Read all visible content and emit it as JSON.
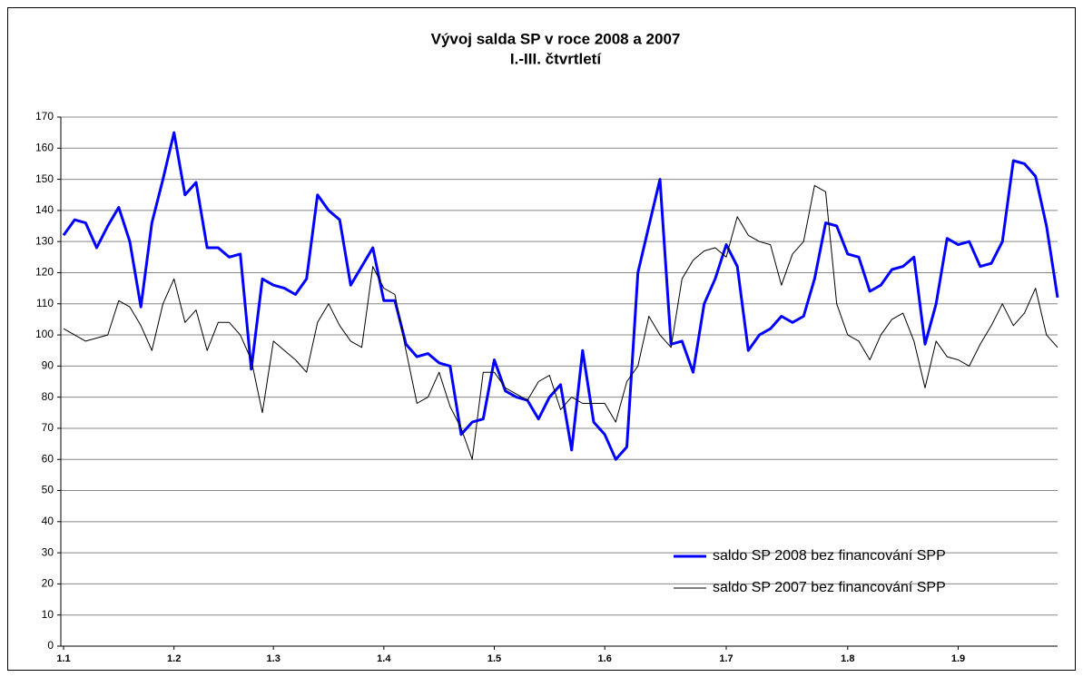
{
  "chart_data": {
    "type": "line",
    "title": "Vývoj salda SP v roce 2008 a 2007",
    "subtitle": "I.-III. čtvrtletí",
    "categories": [
      "1.1",
      null,
      null,
      null,
      null,
      null,
      null,
      null,
      null,
      null,
      "1.2",
      null,
      null,
      null,
      null,
      null,
      null,
      null,
      null,
      "1.3",
      null,
      null,
      null,
      null,
      null,
      null,
      null,
      null,
      null,
      "1.4",
      null,
      null,
      null,
      null,
      null,
      null,
      null,
      null,
      null,
      "1.5",
      null,
      null,
      null,
      null,
      null,
      null,
      null,
      null,
      null,
      "1.6",
      null,
      null,
      null,
      null,
      null,
      null,
      null,
      null,
      null,
      null,
      "1.7",
      null,
      null,
      null,
      null,
      null,
      null,
      null,
      null,
      null,
      null,
      "1.8",
      null,
      null,
      null,
      null,
      null,
      null,
      null,
      null,
      null,
      "1.9",
      null,
      null,
      null,
      null,
      null,
      null,
      null,
      null,
      null
    ],
    "series": [
      {
        "name": "saldo SP 2008 bez financování SPP",
        "color": "#0000ff",
        "width": 3,
        "values": [
          132,
          137,
          136,
          128,
          135,
          141,
          130,
          109,
          136,
          150,
          165,
          145,
          149,
          128,
          128,
          125,
          126,
          89,
          118,
          116,
          115,
          113,
          118,
          145,
          140,
          137,
          116,
          122,
          128,
          111,
          111,
          97,
          93,
          94,
          91,
          90,
          68,
          72,
          73,
          92,
          82,
          80,
          79,
          73,
          80,
          84,
          63,
          95,
          72,
          68,
          60,
          64,
          120,
          135,
          150,
          97,
          98,
          88,
          110,
          118,
          129,
          122,
          95,
          100,
          102,
          106,
          104,
          106,
          118,
          136,
          135,
          126,
          125,
          114,
          116,
          121,
          122,
          125,
          97,
          110,
          131,
          129,
          130,
          122,
          123,
          130,
          156,
          155,
          151,
          135,
          112
        ]
      },
      {
        "name": "saldo SP 2007 bez financování SPP",
        "color": "#000000",
        "width": 1,
        "values": [
          102,
          100,
          98,
          99,
          100,
          111,
          109,
          103,
          95,
          110,
          118,
          104,
          108,
          95,
          104,
          104,
          100,
          92,
          75,
          98,
          95,
          92,
          88,
          104,
          110,
          103,
          98,
          96,
          122,
          115,
          113,
          95,
          78,
          80,
          88,
          77,
          70,
          60,
          88,
          88,
          83,
          81,
          79,
          85,
          87,
          76,
          80,
          78,
          78,
          78,
          72,
          85,
          90,
          106,
          100,
          96,
          118,
          124,
          127,
          128,
          125,
          138,
          132,
          130,
          129,
          116,
          126,
          130,
          148,
          146,
          110,
          100,
          98,
          92,
          100,
          105,
          107,
          98,
          83,
          98,
          93,
          92,
          90,
          97,
          103,
          110,
          103,
          107,
          115,
          100,
          96
        ]
      }
    ],
    "ylim": [
      0,
      170
    ],
    "yticks": [
      0,
      10,
      20,
      30,
      40,
      50,
      60,
      70,
      80,
      90,
      100,
      110,
      120,
      130,
      140,
      150,
      160,
      170
    ],
    "grid": true,
    "legend": "bottom-right"
  }
}
